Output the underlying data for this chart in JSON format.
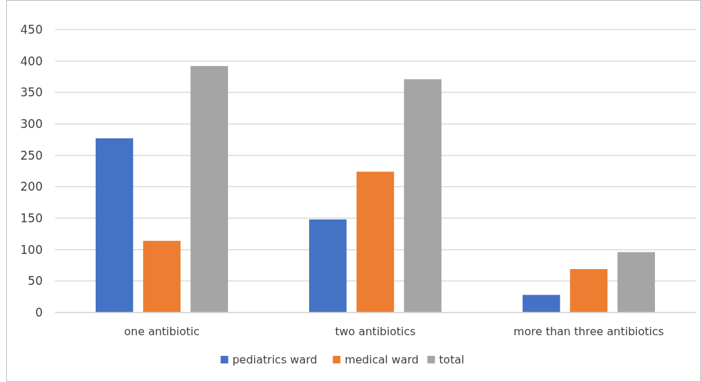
{
  "chart_data": {
    "type": "bar",
    "categories": [
      "one antibiotic",
      "two antibiotics",
      "more than three antibiotics"
    ],
    "series": [
      {
        "name": "pediatrics ward",
        "color": "#4472c4",
        "values": [
          277,
          148,
          28
        ]
      },
      {
        "name": "medical ward",
        "color": "#ed7d31",
        "values": [
          114,
          224,
          69
        ]
      },
      {
        "name": "total",
        "color": "#a5a5a5",
        "values": [
          392,
          371,
          96
        ]
      }
    ],
    "ylim": [
      0,
      450
    ],
    "yticks": [
      0,
      50,
      100,
      150,
      200,
      250,
      300,
      350,
      400,
      450
    ],
    "grid": "y",
    "legend": "bottom"
  }
}
